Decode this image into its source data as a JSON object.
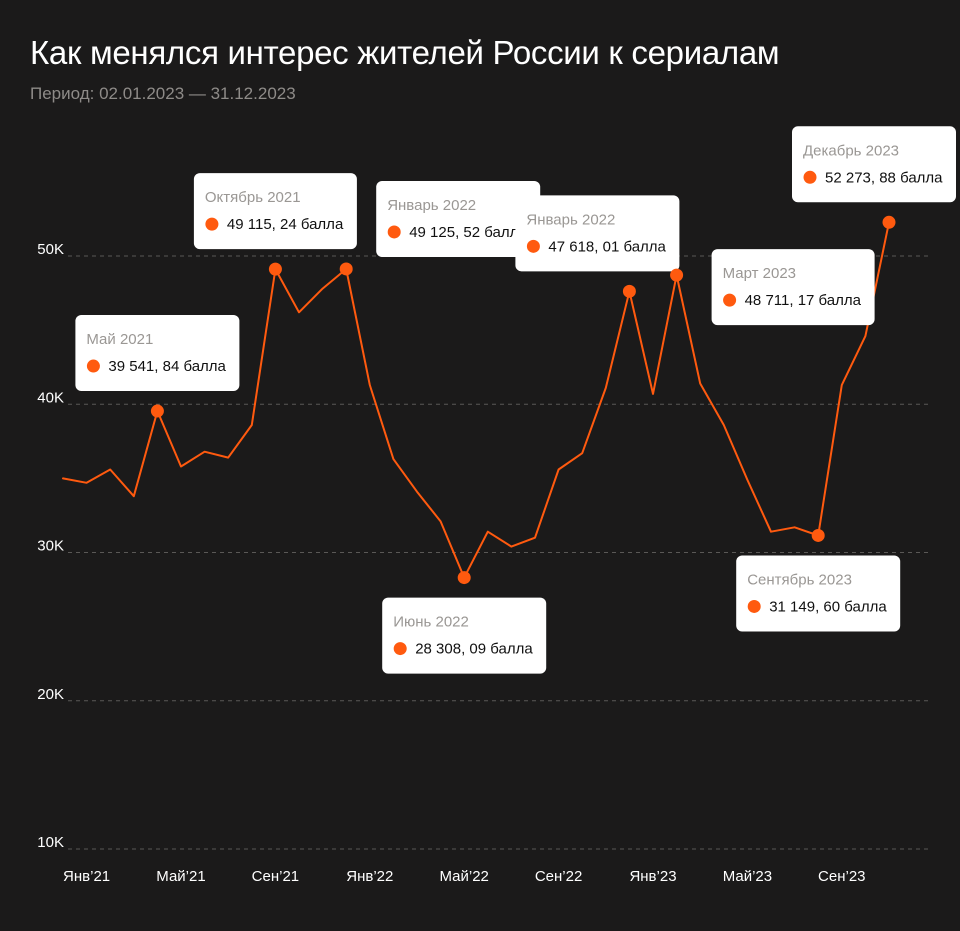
{
  "header": {
    "title": "Как менялся интерес жителей России к сериалам",
    "subtitle": "Период: 02.01.2023 — 31.12.2023"
  },
  "colors": {
    "background": "#1b1a1a",
    "line": "#ff5a0f",
    "grid": "#5a5856",
    "callout_bg": "#ffffff"
  },
  "chart_data": {
    "type": "line",
    "title": "Как менялся интерес жителей России к сериалам",
    "subtitle": "Период: 02.01.2023 — 31.12.2023",
    "xlabel": "",
    "ylabel": "",
    "ylim": [
      10000,
      50000
    ],
    "grid": "horizontal dashed",
    "y_ticks": [
      {
        "value": 10000,
        "label": "10K"
      },
      {
        "value": 20000,
        "label": "20K"
      },
      {
        "value": 30000,
        "label": "30K"
      },
      {
        "value": 40000,
        "label": "40K"
      },
      {
        "value": 50000,
        "label": "50K"
      }
    ],
    "x_ticks": [
      {
        "x": "2021-01",
        "label": "Янв’21"
      },
      {
        "x": "2021-05",
        "label": "Май’21"
      },
      {
        "x": "2021-09",
        "label": "Сен’21"
      },
      {
        "x": "2022-01",
        "label": "Янв’22"
      },
      {
        "x": "2022-05",
        "label": "Май’22"
      },
      {
        "x": "2022-09",
        "label": "Сен’22"
      },
      {
        "x": "2023-01",
        "label": "Янв’23"
      },
      {
        "x": "2023-05",
        "label": "Май’23"
      },
      {
        "x": "2023-09",
        "label": "Сен’23"
      }
    ],
    "series": [
      {
        "points": [
          {
            "x": "2020-12",
            "y": 35000
          },
          {
            "x": "2021-01",
            "y": 34700
          },
          {
            "x": "2021-02",
            "y": 35600
          },
          {
            "x": "2021-03",
            "y": 33800
          },
          {
            "x": "2021-04",
            "y": 39541.84
          },
          {
            "x": "2021-05",
            "y": 35800
          },
          {
            "x": "2021-06",
            "y": 36800
          },
          {
            "x": "2021-07",
            "y": 36400
          },
          {
            "x": "2021-08",
            "y": 38600
          },
          {
            "x": "2021-09",
            "y": 49115.24
          },
          {
            "x": "2021-10",
            "y": 46200
          },
          {
            "x": "2021-11",
            "y": 47800
          },
          {
            "x": "2021-12",
            "y": 49125.52
          },
          {
            "x": "2022-01",
            "y": 41300
          },
          {
            "x": "2022-02",
            "y": 36300
          },
          {
            "x": "2022-03",
            "y": 34100
          },
          {
            "x": "2022-04",
            "y": 32100
          },
          {
            "x": "2022-05",
            "y": 28308.09
          },
          {
            "x": "2022-06",
            "y": 31400
          },
          {
            "x": "2022-07",
            "y": 30400
          },
          {
            "x": "2022-08",
            "y": 31000
          },
          {
            "x": "2022-09",
            "y": 35600
          },
          {
            "x": "2022-10",
            "y": 36700
          },
          {
            "x": "2022-11",
            "y": 41100
          },
          {
            "x": "2022-12",
            "y": 47618.01
          },
          {
            "x": "2023-01",
            "y": 40700
          },
          {
            "x": "2023-02",
            "y": 48711.17
          },
          {
            "x": "2023-03",
            "y": 41400
          },
          {
            "x": "2023-04",
            "y": 38600
          },
          {
            "x": "2023-05",
            "y": 34900
          },
          {
            "x": "2023-06",
            "y": 31400
          },
          {
            "x": "2023-07",
            "y": 31700
          },
          {
            "x": "2023-08",
            "y": 31149.6
          },
          {
            "x": "2023-09",
            "y": 41300
          },
          {
            "x": "2023-10",
            "y": 44600
          },
          {
            "x": "2023-11",
            "y": 52273.88
          }
        ]
      }
    ],
    "annotations": [
      {
        "x": "2021-04",
        "y": 39541.84,
        "title": "Май 2021",
        "value_text": "39 541, 84 балла",
        "placement": "above"
      },
      {
        "x": "2021-09",
        "y": 49115.24,
        "title": "Октябрь 2021",
        "value_text": "49 115, 24 балла",
        "placement": "above"
      },
      {
        "x": "2021-12",
        "y": 49125.52,
        "title": "Январь 2022",
        "value_text": "49 125, 52 балла",
        "placement": "above-right"
      },
      {
        "x": "2022-05",
        "y": 28308.09,
        "title": "Июнь 2022",
        "value_text": "28 308, 09 балла",
        "placement": "below"
      },
      {
        "x": "2022-12",
        "y": 47618.01,
        "title": "Январь 2022",
        "value_text": "47 618, 01 балла",
        "placement": "above-left"
      },
      {
        "x": "2023-02",
        "y": 48711.17,
        "title": "Март 2023",
        "value_text": "48 711, 17 балла",
        "placement": "right"
      },
      {
        "x": "2023-08",
        "y": 31149.6,
        "title": "Сентябрь  2023",
        "value_text": "31 149, 60 балла",
        "placement": "below"
      },
      {
        "x": "2023-11",
        "y": 52273.88,
        "title": "Декабрь 2023",
        "value_text": "52 273, 88 балла",
        "placement": "above"
      }
    ]
  }
}
